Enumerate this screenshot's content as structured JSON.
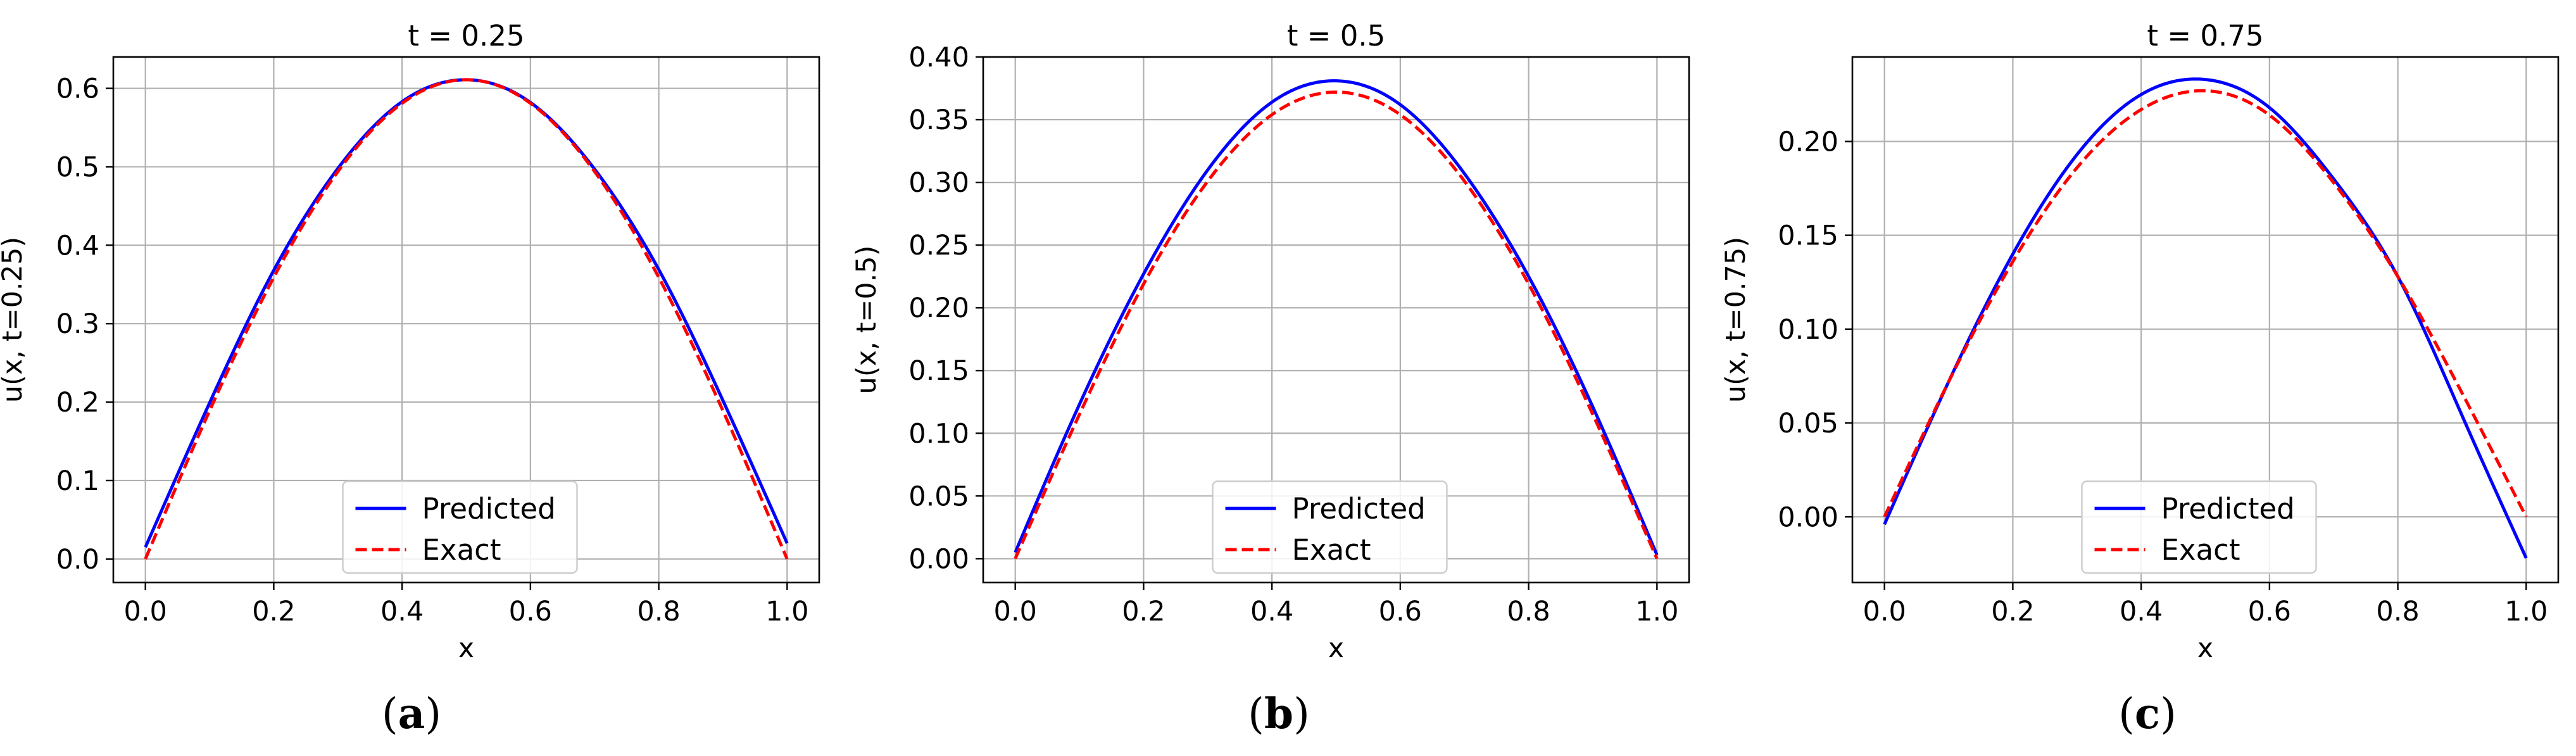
{
  "chart_data": [
    {
      "type": "line",
      "title": "t = 0.25",
      "xlabel": "x",
      "ylabel": "u(x, t=0.25)",
      "caption": "a",
      "xlim": [
        -0.05,
        1.05
      ],
      "ylim": [
        -0.03,
        0.64
      ],
      "xticks": [
        0.0,
        0.2,
        0.4,
        0.6,
        0.8,
        1.0
      ],
      "xtick_labels": [
        "0.0",
        "0.2",
        "0.4",
        "0.6",
        "0.8",
        "1.0"
      ],
      "yticks": [
        0.0,
        0.1,
        0.2,
        0.3,
        0.4,
        0.5,
        0.6
      ],
      "ytick_labels": [
        "0.0",
        "0.1",
        "0.2",
        "0.3",
        "0.4",
        "0.5",
        "0.6"
      ],
      "grid": true,
      "legend_position": "lower center",
      "series": [
        {
          "name": "Predicted",
          "color": "#0000ff",
          "dash": "solid",
          "x": [
            0.0,
            0.1,
            0.2,
            0.3,
            0.4,
            0.5,
            0.6,
            0.7,
            0.8,
            0.9,
            1.0
          ],
          "y": [
            0.015,
            0.199,
            0.368,
            0.498,
            0.583,
            0.611,
            0.582,
            0.497,
            0.369,
            0.202,
            0.02
          ]
        },
        {
          "name": "Exact",
          "color": "#ff0000",
          "dash": "dashed",
          "x": [
            0.0,
            0.1,
            0.2,
            0.3,
            0.4,
            0.5,
            0.6,
            0.7,
            0.8,
            0.9,
            1.0
          ],
          "y": [
            0.0,
            0.189,
            0.359,
            0.494,
            0.581,
            0.611,
            0.581,
            0.494,
            0.359,
            0.189,
            0.0
          ]
        }
      ]
    },
    {
      "type": "line",
      "title": "t = 0.5",
      "xlabel": "x",
      "ylabel": "u(x, t=0.5)",
      "caption": "b",
      "xlim": [
        -0.05,
        1.05
      ],
      "ylim": [
        -0.019,
        0.4
      ],
      "xticks": [
        0.0,
        0.2,
        0.4,
        0.6,
        0.8,
        1.0
      ],
      "xtick_labels": [
        "0.0",
        "0.2",
        "0.4",
        "0.6",
        "0.8",
        "1.0"
      ],
      "yticks": [
        0.0,
        0.05,
        0.1,
        0.15,
        0.2,
        0.25,
        0.3,
        0.35,
        0.4
      ],
      "ytick_labels": [
        "0.00",
        "0.05",
        "0.10",
        "0.15",
        "0.20",
        "0.25",
        "0.30",
        "0.35",
        "0.40"
      ],
      "grid": true,
      "legend_position": "lower center",
      "series": [
        {
          "name": "Predicted",
          "color": "#0000ff",
          "dash": "solid",
          "x": [
            0.0,
            0.1,
            0.2,
            0.3,
            0.4,
            0.5,
            0.6,
            0.7,
            0.8,
            0.9,
            1.0
          ],
          "y": [
            0.005,
            0.123,
            0.227,
            0.31,
            0.364,
            0.381,
            0.362,
            0.307,
            0.225,
            0.121,
            0.003
          ]
        },
        {
          "name": "Exact",
          "color": "#ff0000",
          "dash": "dashed",
          "x": [
            0.0,
            0.1,
            0.2,
            0.3,
            0.4,
            0.5,
            0.6,
            0.7,
            0.8,
            0.9,
            1.0
          ],
          "y": [
            0.0,
            0.115,
            0.219,
            0.301,
            0.354,
            0.372,
            0.354,
            0.301,
            0.219,
            0.115,
            0.0
          ]
        }
      ]
    },
    {
      "type": "line",
      "title": "t = 0.75",
      "xlabel": "x",
      "ylabel": "u(x, t=0.75)",
      "caption": "c",
      "xlim": [
        -0.05,
        1.05
      ],
      "ylim": [
        -0.035,
        0.245
      ],
      "xticks": [
        0.0,
        0.2,
        0.4,
        0.6,
        0.8,
        1.0
      ],
      "xtick_labels": [
        "0.0",
        "0.2",
        "0.4",
        "0.6",
        "0.8",
        "1.0"
      ],
      "yticks": [
        0.0,
        0.05,
        0.1,
        0.15,
        0.2
      ],
      "ytick_labels": [
        "0.00",
        "0.05",
        "0.10",
        "0.15",
        "0.20"
      ],
      "grid": true,
      "legend_position": "lower center",
      "series": [
        {
          "name": "Predicted",
          "color": "#0000ff",
          "dash": "solid",
          "x": [
            0.0,
            0.1,
            0.2,
            0.3,
            0.4,
            0.5,
            0.6,
            0.7,
            0.8,
            0.9,
            1.0
          ],
          "y": [
            -0.004,
            0.072,
            0.14,
            0.193,
            0.225,
            0.233,
            0.218,
            0.18,
            0.128,
            0.054,
            -0.022
          ]
        },
        {
          "name": "Exact",
          "color": "#ff0000",
          "dash": "dashed",
          "x": [
            0.0,
            0.1,
            0.2,
            0.3,
            0.4,
            0.5,
            0.6,
            0.7,
            0.8,
            0.9,
            1.0
          ],
          "y": [
            0.0,
            0.072,
            0.136,
            0.186,
            0.217,
            0.227,
            0.214,
            0.178,
            0.128,
            0.066,
            0.0
          ]
        }
      ]
    }
  ]
}
